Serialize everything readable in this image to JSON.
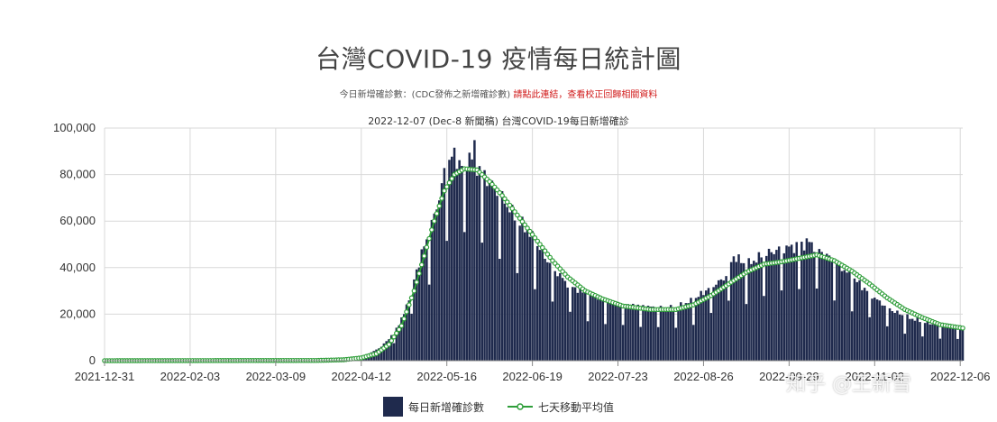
{
  "title": "台灣COVID-19 疫情每日統計圖",
  "note": {
    "prefix": "今日新增確診數：(CDC發佈之新增確診數)",
    "red": "請點此連結，查看校正回歸相關資料"
  },
  "subtitle": "2022-12-07 (Dec-8 新聞稿) 台灣COVID-19每日新增確診",
  "watermark": "知乎 @王新雪",
  "legend": {
    "bar_label": "每日新增確診數",
    "line_label": "七天移動平均值"
  },
  "colors": {
    "bar": "#1f2a4d",
    "line": "#2f9e3a",
    "marker_fill": "#ffffff",
    "grid": "#d9d9d9",
    "axis": "#888888"
  },
  "chart_data": {
    "type": "bar",
    "title": "2022-12-07 (Dec-8 新聞稿) 台灣COVID-19每日新增確診",
    "xlabel": "",
    "ylabel": "",
    "x_start": "2021-12-31",
    "x_end": "2022-12-07",
    "ylim": [
      0,
      100000
    ],
    "yticks": [
      0,
      20000,
      40000,
      60000,
      80000,
      100000
    ],
    "ytick_labels": [
      "0",
      "20,000",
      "40,000",
      "60,000",
      "80,000",
      "100,000"
    ],
    "xtick_labels": [
      "2021-12-31",
      "2022-02-03",
      "2022-03-09",
      "2022-04-12",
      "2022-05-16",
      "2022-06-19",
      "2022-07-23",
      "2022-08-26",
      "2022-09-29",
      "2022-11-02",
      "2022-12-06"
    ],
    "grid": true,
    "legend_position": "bottom",
    "series": [
      {
        "name": "每日新增確診數",
        "type": "bar",
        "keypoints": [
          [
            "2021-12-31",
            0
          ],
          [
            "2022-03-20",
            100
          ],
          [
            "2022-04-01",
            300
          ],
          [
            "2022-04-08",
            800
          ],
          [
            "2022-04-15",
            3000
          ],
          [
            "2022-04-20",
            6000
          ],
          [
            "2022-04-25",
            12000
          ],
          [
            "2022-04-29",
            20000
          ],
          [
            "2022-05-03",
            35000
          ],
          [
            "2022-05-06",
            46000
          ],
          [
            "2022-05-09",
            55000
          ],
          [
            "2022-05-12",
            66000
          ],
          [
            "2022-05-14",
            75000
          ],
          [
            "2022-05-16",
            86000
          ],
          [
            "2022-05-19",
            88000
          ],
          [
            "2022-05-22",
            84000
          ],
          [
            "2022-05-25",
            88000
          ],
          [
            "2022-05-28",
            84000
          ],
          [
            "2022-06-02",
            77000
          ],
          [
            "2022-06-07",
            70000
          ],
          [
            "2022-06-12",
            62000
          ],
          [
            "2022-06-17",
            56000
          ],
          [
            "2022-06-22",
            48000
          ],
          [
            "2022-06-27",
            40000
          ],
          [
            "2022-07-03",
            33000
          ],
          [
            "2022-07-10",
            29000
          ],
          [
            "2022-07-18",
            26000
          ],
          [
            "2022-07-25",
            24000
          ],
          [
            "2022-08-05",
            23000
          ],
          [
            "2022-08-15",
            23000
          ],
          [
            "2022-08-22",
            26000
          ],
          [
            "2022-08-29",
            32000
          ],
          [
            "2022-09-03",
            35000
          ],
          [
            "2022-09-07",
            45000
          ],
          [
            "2022-09-12",
            41000
          ],
          [
            "2022-09-18",
            45000
          ],
          [
            "2022-09-25",
            48000
          ],
          [
            "2022-10-01",
            49000
          ],
          [
            "2022-10-07",
            51000
          ],
          [
            "2022-10-14",
            45000
          ],
          [
            "2022-10-20",
            40000
          ],
          [
            "2022-10-27",
            33000
          ],
          [
            "2022-11-03",
            26000
          ],
          [
            "2022-11-10",
            21000
          ],
          [
            "2022-11-17",
            18000
          ],
          [
            "2022-11-24",
            16000
          ],
          [
            "2022-12-01",
            15000
          ],
          [
            "2022-12-07",
            15000
          ]
        ],
        "weekly_dip_fraction": 0.62,
        "peak": [
          "2022-05-27",
          94808
        ]
      },
      {
        "name": "七天移動平均值",
        "type": "line",
        "keypoints": [
          [
            "2021-12-31",
            0
          ],
          [
            "2022-03-25",
            100
          ],
          [
            "2022-04-05",
            400
          ],
          [
            "2022-04-12",
            1200
          ],
          [
            "2022-04-18",
            3000
          ],
          [
            "2022-04-23",
            7000
          ],
          [
            "2022-04-28",
            15000
          ],
          [
            "2022-05-03",
            30000
          ],
          [
            "2022-05-07",
            45000
          ],
          [
            "2022-05-11",
            60000
          ],
          [
            "2022-05-15",
            73000
          ],
          [
            "2022-05-19",
            80000
          ],
          [
            "2022-05-23",
            82500
          ],
          [
            "2022-05-28",
            82000
          ],
          [
            "2022-06-02",
            77000
          ],
          [
            "2022-06-07",
            71000
          ],
          [
            "2022-06-12",
            64000
          ],
          [
            "2022-06-17",
            57000
          ],
          [
            "2022-06-22",
            50000
          ],
          [
            "2022-06-27",
            43000
          ],
          [
            "2022-07-03",
            36000
          ],
          [
            "2022-07-10",
            30000
          ],
          [
            "2022-07-17",
            26500
          ],
          [
            "2022-07-25",
            23500
          ],
          [
            "2022-08-05",
            22000
          ],
          [
            "2022-08-15",
            22000
          ],
          [
            "2022-08-22",
            24000
          ],
          [
            "2022-08-29",
            28000
          ],
          [
            "2022-09-05",
            33000
          ],
          [
            "2022-09-12",
            38000
          ],
          [
            "2022-09-19",
            41500
          ],
          [
            "2022-09-26",
            42500
          ],
          [
            "2022-10-03",
            44000
          ],
          [
            "2022-10-10",
            45500
          ],
          [
            "2022-10-17",
            43000
          ],
          [
            "2022-10-24",
            38500
          ],
          [
            "2022-10-31",
            33000
          ],
          [
            "2022-11-07",
            27000
          ],
          [
            "2022-11-14",
            22000
          ],
          [
            "2022-11-21",
            18500
          ],
          [
            "2022-11-28",
            15500
          ],
          [
            "2022-12-07",
            14000
          ]
        ]
      }
    ]
  }
}
